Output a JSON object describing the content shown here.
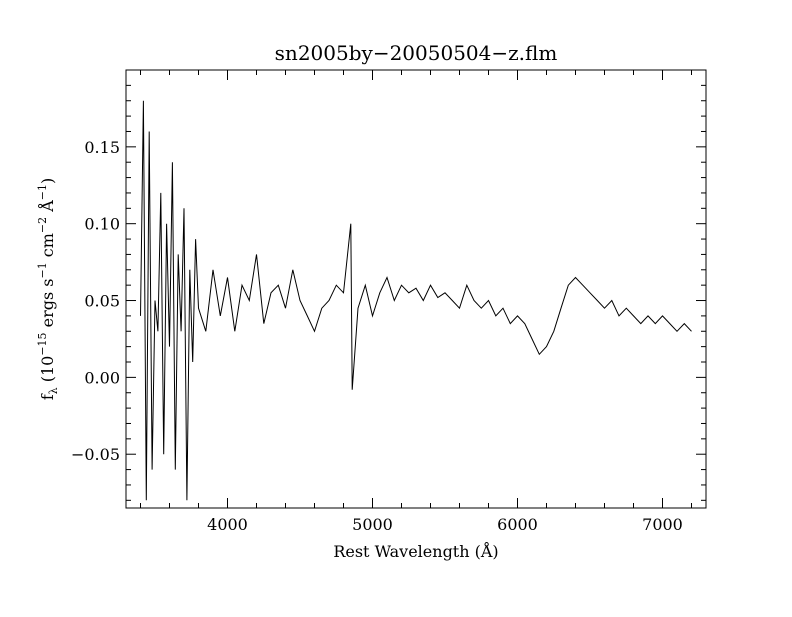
{
  "chart_data": {
    "type": "line",
    "title": "sn2005by−20050504−z.flm",
    "xlabel": "Rest Wavelength (Å)",
    "ylabel": {
      "prefix": "f",
      "sub_lambda": "λ",
      "open": " (10",
      "exp_15": "−15",
      "ergs": " ergs s",
      "exp_s": "−1",
      "cm": " cm",
      "exp_cm": "−2",
      "ang": " Å",
      "exp_ang": "−1",
      "close": ")"
    },
    "xlim": [
      3300,
      7300
    ],
    "ylim": [
      -0.085,
      0.2
    ],
    "x_ticks": [
      4000,
      5000,
      6000,
      7000
    ],
    "x_tick_labels": [
      "4000",
      "5000",
      "6000",
      "7000"
    ],
    "y_ticks": [
      -0.05,
      0.0,
      0.05,
      0.1,
      0.15
    ],
    "y_tick_labels": [
      "−0.05",
      "0.00",
      "0.05",
      "0.10",
      "0.15"
    ],
    "grid": false,
    "series": [
      {
        "x": [
          3400,
          3420,
          3440,
          3460,
          3480,
          3500,
          3520,
          3540,
          3560,
          3580,
          3600,
          3620,
          3640,
          3660,
          3680,
          3700,
          3720,
          3740,
          3760,
          3780,
          3800,
          3850,
          3900,
          3950,
          4000,
          4050,
          4100,
          4150,
          4200,
          4250,
          4300,
          4350,
          4400,
          4450,
          4500,
          4550,
          4600,
          4650,
          4700,
          4750,
          4800,
          4850,
          4860,
          4900,
          4950,
          5000,
          5050,
          5100,
          5150,
          5200,
          5250,
          5300,
          5350,
          5400,
          5450,
          5500,
          5550,
          5600,
          5650,
          5700,
          5750,
          5800,
          5850,
          5900,
          5950,
          6000,
          6050,
          6100,
          6150,
          6200,
          6250,
          6300,
          6350,
          6400,
          6450,
          6500,
          6550,
          6600,
          6650,
          6700,
          6750,
          6800,
          6850,
          6900,
          6950,
          7000,
          7050,
          7100,
          7150,
          7200
        ],
        "y": [
          0.04,
          0.18,
          -0.08,
          0.16,
          -0.06,
          0.05,
          0.03,
          0.12,
          -0.05,
          0.1,
          0.02,
          0.14,
          -0.06,
          0.08,
          0.03,
          0.11,
          -0.08,
          0.07,
          0.01,
          0.09,
          0.045,
          0.03,
          0.07,
          0.04,
          0.065,
          0.03,
          0.06,
          0.05,
          0.08,
          0.035,
          0.055,
          0.06,
          0.045,
          0.07,
          0.05,
          0.04,
          0.03,
          0.045,
          0.05,
          0.06,
          0.055,
          0.1,
          -0.008,
          0.045,
          0.06,
          0.04,
          0.055,
          0.065,
          0.05,
          0.06,
          0.055,
          0.058,
          0.05,
          0.06,
          0.052,
          0.055,
          0.05,
          0.045,
          0.06,
          0.05,
          0.045,
          0.05,
          0.04,
          0.045,
          0.035,
          0.04,
          0.035,
          0.025,
          0.015,
          0.02,
          0.03,
          0.045,
          0.06,
          0.065,
          0.06,
          0.055,
          0.05,
          0.045,
          0.05,
          0.04,
          0.045,
          0.04,
          0.035,
          0.04,
          0.035,
          0.04,
          0.035,
          0.03,
          0.035,
          0.03
        ]
      }
    ]
  }
}
